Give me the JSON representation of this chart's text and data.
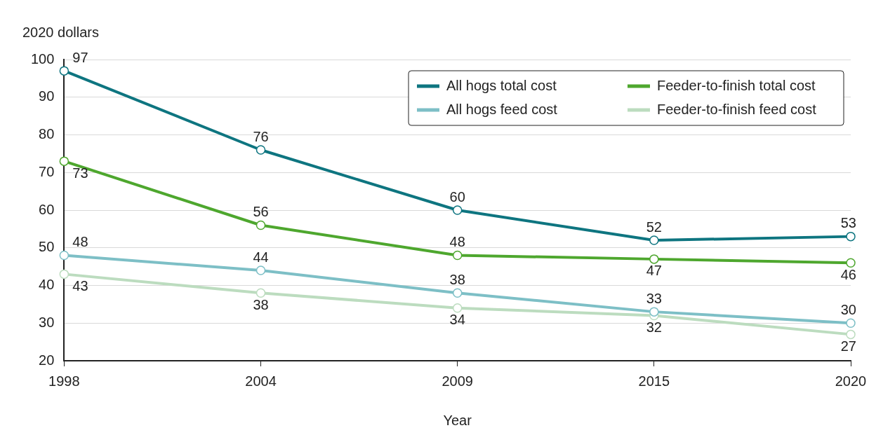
{
  "chart_data": {
    "type": "line",
    "xlabel": "Year",
    "ylabel": "2020 dollars",
    "categories": [
      "1998",
      "2004",
      "2009",
      "2015",
      "2020"
    ],
    "series": [
      {
        "name": "All hogs total cost",
        "color": "#0e7580",
        "values": [
          97,
          76,
          60,
          52,
          53
        ]
      },
      {
        "name": "Feeder-to-finish total cost",
        "color": "#4ea72e",
        "values": [
          73,
          56,
          48,
          47,
          46
        ]
      },
      {
        "name": "All hogs feed cost",
        "color": "#7dbfc6",
        "values": [
          48,
          44,
          38,
          33,
          30
        ]
      },
      {
        "name": "Feeder-to-finish feed cost",
        "color": "#bcdcbf",
        "values": [
          43,
          38,
          34,
          32,
          27
        ]
      }
    ],
    "ylim": [
      20,
      100
    ],
    "yticks": [
      20,
      30,
      40,
      50,
      60,
      70,
      80,
      90,
      100
    ],
    "grid": "y",
    "legend": "top right",
    "marker": "circle",
    "line_style": "solid",
    "data_labels": true
  }
}
